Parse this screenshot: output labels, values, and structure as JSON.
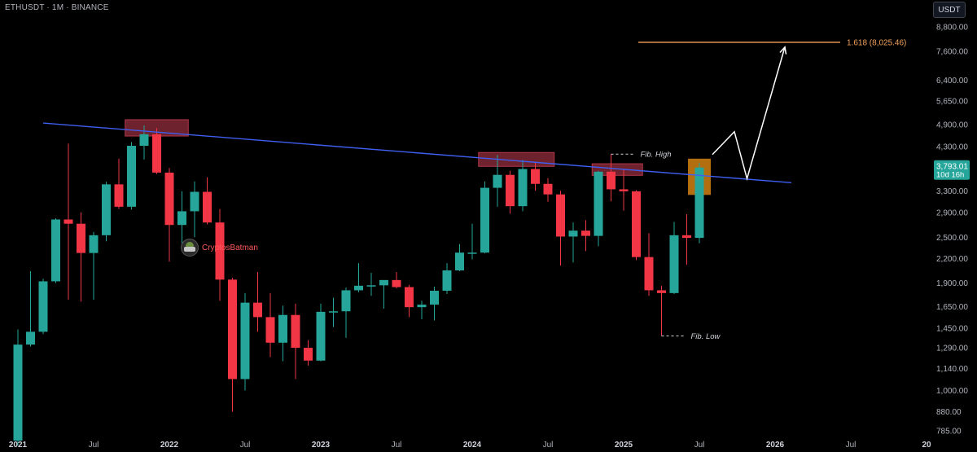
{
  "header": {
    "symbol": "ETHUSDT · 1M · BINANCE",
    "currency": "USDT"
  },
  "watermark": {
    "text": "CryptosBatman",
    "icon": "batman-avatar-icon"
  },
  "colors": {
    "up": "#26a69a",
    "down": "#f23645",
    "trendline": "#3f5ff0",
    "zone": "#b2374a",
    "target": "#f2a35b",
    "current_box": "#c77a12",
    "price_badge": "#26a69a",
    "axis_text": "#b2b5be"
  },
  "chart_data": {
    "type": "candlestick",
    "timeframe": "1M",
    "scale": "log",
    "ylim": [
      760,
      9000
    ],
    "xlim": [
      "2020-12",
      "2026-12"
    ],
    "yticks": [
      "8,800.00",
      "7,600.00",
      "6,400.00",
      "5,650.00",
      "4,900.00",
      "4,300.00",
      "3,300.00",
      "2,900.00",
      "2,500.00",
      "2,200.00",
      "1,900.00",
      "1,650.00",
      "1,450.00",
      "1,290.00",
      "1,140.00",
      "1,000.00",
      "880.00",
      "785.00"
    ],
    "ytick_values": [
      8800,
      7600,
      6400,
      5650,
      4900,
      4300,
      3300,
      2900,
      2500,
      2200,
      1900,
      1650,
      1450,
      1290,
      1140,
      1000,
      880,
      785
    ],
    "xticks": [
      {
        "label": "2021",
        "date": "2021-01"
      },
      {
        "label": "Jul",
        "date": "2021-07"
      },
      {
        "label": "2022",
        "date": "2022-01"
      },
      {
        "label": "Jul",
        "date": "2022-07"
      },
      {
        "label": "2023",
        "date": "2023-01"
      },
      {
        "label": "Jul",
        "date": "2023-07"
      },
      {
        "label": "2024",
        "date": "2024-01"
      },
      {
        "label": "Jul",
        "date": "2024-07"
      },
      {
        "label": "2025",
        "date": "2025-01"
      },
      {
        "label": "Jul",
        "date": "2025-07"
      },
      {
        "label": "2026",
        "date": "2026-01"
      },
      {
        "label": "Jul",
        "date": "2026-07"
      },
      {
        "label": "20",
        "date": "2027-01"
      }
    ],
    "candles": [
      {
        "t": "2021-01",
        "o": 740,
        "h": 1440,
        "l": 720,
        "c": 1315
      },
      {
        "t": "2021-02",
        "o": 1315,
        "h": 2040,
        "l": 1300,
        "c": 1420
      },
      {
        "t": "2021-03",
        "o": 1420,
        "h": 1950,
        "l": 1400,
        "c": 1920
      },
      {
        "t": "2021-04",
        "o": 1920,
        "h": 2800,
        "l": 1900,
        "c": 2780
      },
      {
        "t": "2021-05",
        "o": 2780,
        "h": 4380,
        "l": 1720,
        "c": 2710
      },
      {
        "t": "2021-06",
        "o": 2710,
        "h": 2900,
        "l": 1700,
        "c": 2275
      },
      {
        "t": "2021-07",
        "o": 2275,
        "h": 2580,
        "l": 1720,
        "c": 2530
      },
      {
        "t": "2021-08",
        "o": 2530,
        "h": 3480,
        "l": 2440,
        "c": 3430
      },
      {
        "t": "2021-09",
        "o": 3430,
        "h": 4000,
        "l": 2960,
        "c": 3000
      },
      {
        "t": "2021-10",
        "o": 3000,
        "h": 4420,
        "l": 2950,
        "c": 4320
      },
      {
        "t": "2021-11",
        "o": 4320,
        "h": 4880,
        "l": 3980,
        "c": 4630
      },
      {
        "t": "2021-12",
        "o": 4630,
        "h": 4800,
        "l": 3650,
        "c": 3680
      },
      {
        "t": "2022-01",
        "o": 3680,
        "h": 3780,
        "l": 2160,
        "c": 2690
      },
      {
        "t": "2022-02",
        "o": 2690,
        "h": 3290,
        "l": 2380,
        "c": 2920
      },
      {
        "t": "2022-03",
        "o": 2920,
        "h": 3490,
        "l": 2500,
        "c": 3280
      },
      {
        "t": "2022-04",
        "o": 3280,
        "h": 3580,
        "l": 2700,
        "c": 2730
      },
      {
        "t": "2022-05",
        "o": 2730,
        "h": 2960,
        "l": 1710,
        "c": 1940
      },
      {
        "t": "2022-06",
        "o": 1940,
        "h": 1960,
        "l": 880,
        "c": 1070
      },
      {
        "t": "2022-07",
        "o": 1070,
        "h": 1790,
        "l": 1000,
        "c": 1690
      },
      {
        "t": "2022-08",
        "o": 1690,
        "h": 2030,
        "l": 1420,
        "c": 1550
      },
      {
        "t": "2022-09",
        "o": 1550,
        "h": 1790,
        "l": 1220,
        "c": 1330
      },
      {
        "t": "2022-10",
        "o": 1330,
        "h": 1660,
        "l": 1190,
        "c": 1570
      },
      {
        "t": "2022-11",
        "o": 1570,
        "h": 1680,
        "l": 1070,
        "c": 1290
      },
      {
        "t": "2022-12",
        "o": 1290,
        "h": 1350,
        "l": 1160,
        "c": 1195
      },
      {
        "t": "2023-01",
        "o": 1195,
        "h": 1680,
        "l": 1190,
        "c": 1600
      },
      {
        "t": "2023-02",
        "o": 1600,
        "h": 1740,
        "l": 1460,
        "c": 1605
      },
      {
        "t": "2023-03",
        "o": 1605,
        "h": 1850,
        "l": 1370,
        "c": 1820
      },
      {
        "t": "2023-04",
        "o": 1820,
        "h": 2140,
        "l": 1800,
        "c": 1870
      },
      {
        "t": "2023-05",
        "o": 1870,
        "h": 2020,
        "l": 1760,
        "c": 1875
      },
      {
        "t": "2023-06",
        "o": 1875,
        "h": 1930,
        "l": 1630,
        "c": 1935
      },
      {
        "t": "2023-07",
        "o": 1935,
        "h": 2030,
        "l": 1840,
        "c": 1855
      },
      {
        "t": "2023-08",
        "o": 1855,
        "h": 1880,
        "l": 1550,
        "c": 1645
      },
      {
        "t": "2023-09",
        "o": 1645,
        "h": 1710,
        "l": 1530,
        "c": 1670
      },
      {
        "t": "2023-10",
        "o": 1670,
        "h": 1860,
        "l": 1520,
        "c": 1815
      },
      {
        "t": "2023-11",
        "o": 1815,
        "h": 2140,
        "l": 1780,
        "c": 2050
      },
      {
        "t": "2023-12",
        "o": 2050,
        "h": 2400,
        "l": 2040,
        "c": 2280
      },
      {
        "t": "2024-01",
        "o": 2280,
        "h": 2710,
        "l": 2190,
        "c": 2280
      },
      {
        "t": "2024-02",
        "o": 2280,
        "h": 3490,
        "l": 2270,
        "c": 3360
      },
      {
        "t": "2024-03",
        "o": 3360,
        "h": 4090,
        "l": 3000,
        "c": 3630
      },
      {
        "t": "2024-04",
        "o": 3630,
        "h": 3720,
        "l": 2880,
        "c": 3010
      },
      {
        "t": "2024-05",
        "o": 3010,
        "h": 3970,
        "l": 2920,
        "c": 3760
      },
      {
        "t": "2024-06",
        "o": 3760,
        "h": 3920,
        "l": 3300,
        "c": 3440
      },
      {
        "t": "2024-07",
        "o": 3440,
        "h": 3560,
        "l": 3090,
        "c": 3230
      },
      {
        "t": "2024-08",
        "o": 3230,
        "h": 3300,
        "l": 2110,
        "c": 2510
      },
      {
        "t": "2024-09",
        "o": 2510,
        "h": 2730,
        "l": 2150,
        "c": 2600
      },
      {
        "t": "2024-10",
        "o": 2600,
        "h": 2770,
        "l": 2300,
        "c": 2520
      },
      {
        "t": "2024-11",
        "o": 2520,
        "h": 3720,
        "l": 2370,
        "c": 3700
      },
      {
        "t": "2024-12",
        "o": 3700,
        "h": 4110,
        "l": 3100,
        "c": 3330
      },
      {
        "t": "2025-01",
        "o": 3330,
        "h": 3750,
        "l": 2930,
        "c": 3290
      },
      {
        "t": "2025-02",
        "o": 3290,
        "h": 3310,
        "l": 2180,
        "c": 2220
      },
      {
        "t": "2025-03",
        "o": 2220,
        "h": 2560,
        "l": 1760,
        "c": 1820
      },
      {
        "t": "2025-04",
        "o": 1820,
        "h": 1870,
        "l": 1385,
        "c": 1790
      },
      {
        "t": "2025-05",
        "o": 1790,
        "h": 2740,
        "l": 1780,
        "c": 2530
      },
      {
        "t": "2025-06",
        "o": 2530,
        "h": 2870,
        "l": 2120,
        "c": 2490
      },
      {
        "t": "2025-07",
        "o": 2490,
        "h": 3900,
        "l": 2410,
        "c": 3793
      }
    ],
    "trendline": {
      "from": {
        "t": "2021-01",
        "y": 4950
      },
      "to": {
        "t": "2026-01",
        "y": 3430
      }
    },
    "resistance_zones": [
      {
        "from": "2021-10",
        "to": "2022-02",
        "y0": 4580,
        "y1": 5050
      },
      {
        "from": "2024-02",
        "to": "2024-07",
        "y0": 3820,
        "y1": 4150
      },
      {
        "from": "2024-11",
        "to": "2025-02",
        "y0": 3620,
        "y1": 3880
      }
    ],
    "current_box": {
      "from": "2025-07",
      "y0": 3220,
      "y1": 4000
    },
    "fib_high": {
      "label": "Fib. High",
      "t": "2024-12",
      "y": 4110
    },
    "fib_low": {
      "label": "Fib. Low",
      "t": "2025-04",
      "y": 1385
    },
    "target": {
      "label": "1.618 (8,025.46)",
      "y": 8025.46,
      "from": "2025-12",
      "to": "2027-01"
    },
    "projection_path": [
      {
        "t": "2025-07",
        "y": 4100
      },
      {
        "t": "2025-09",
        "y": 4700
      },
      {
        "t": "2025-10",
        "y": 3550
      },
      {
        "t": "2026-01",
        "y": 7800
      }
    ],
    "current_price": {
      "label": "3,793.01",
      "countdown": "10d 16h",
      "y": 3793.01
    }
  }
}
